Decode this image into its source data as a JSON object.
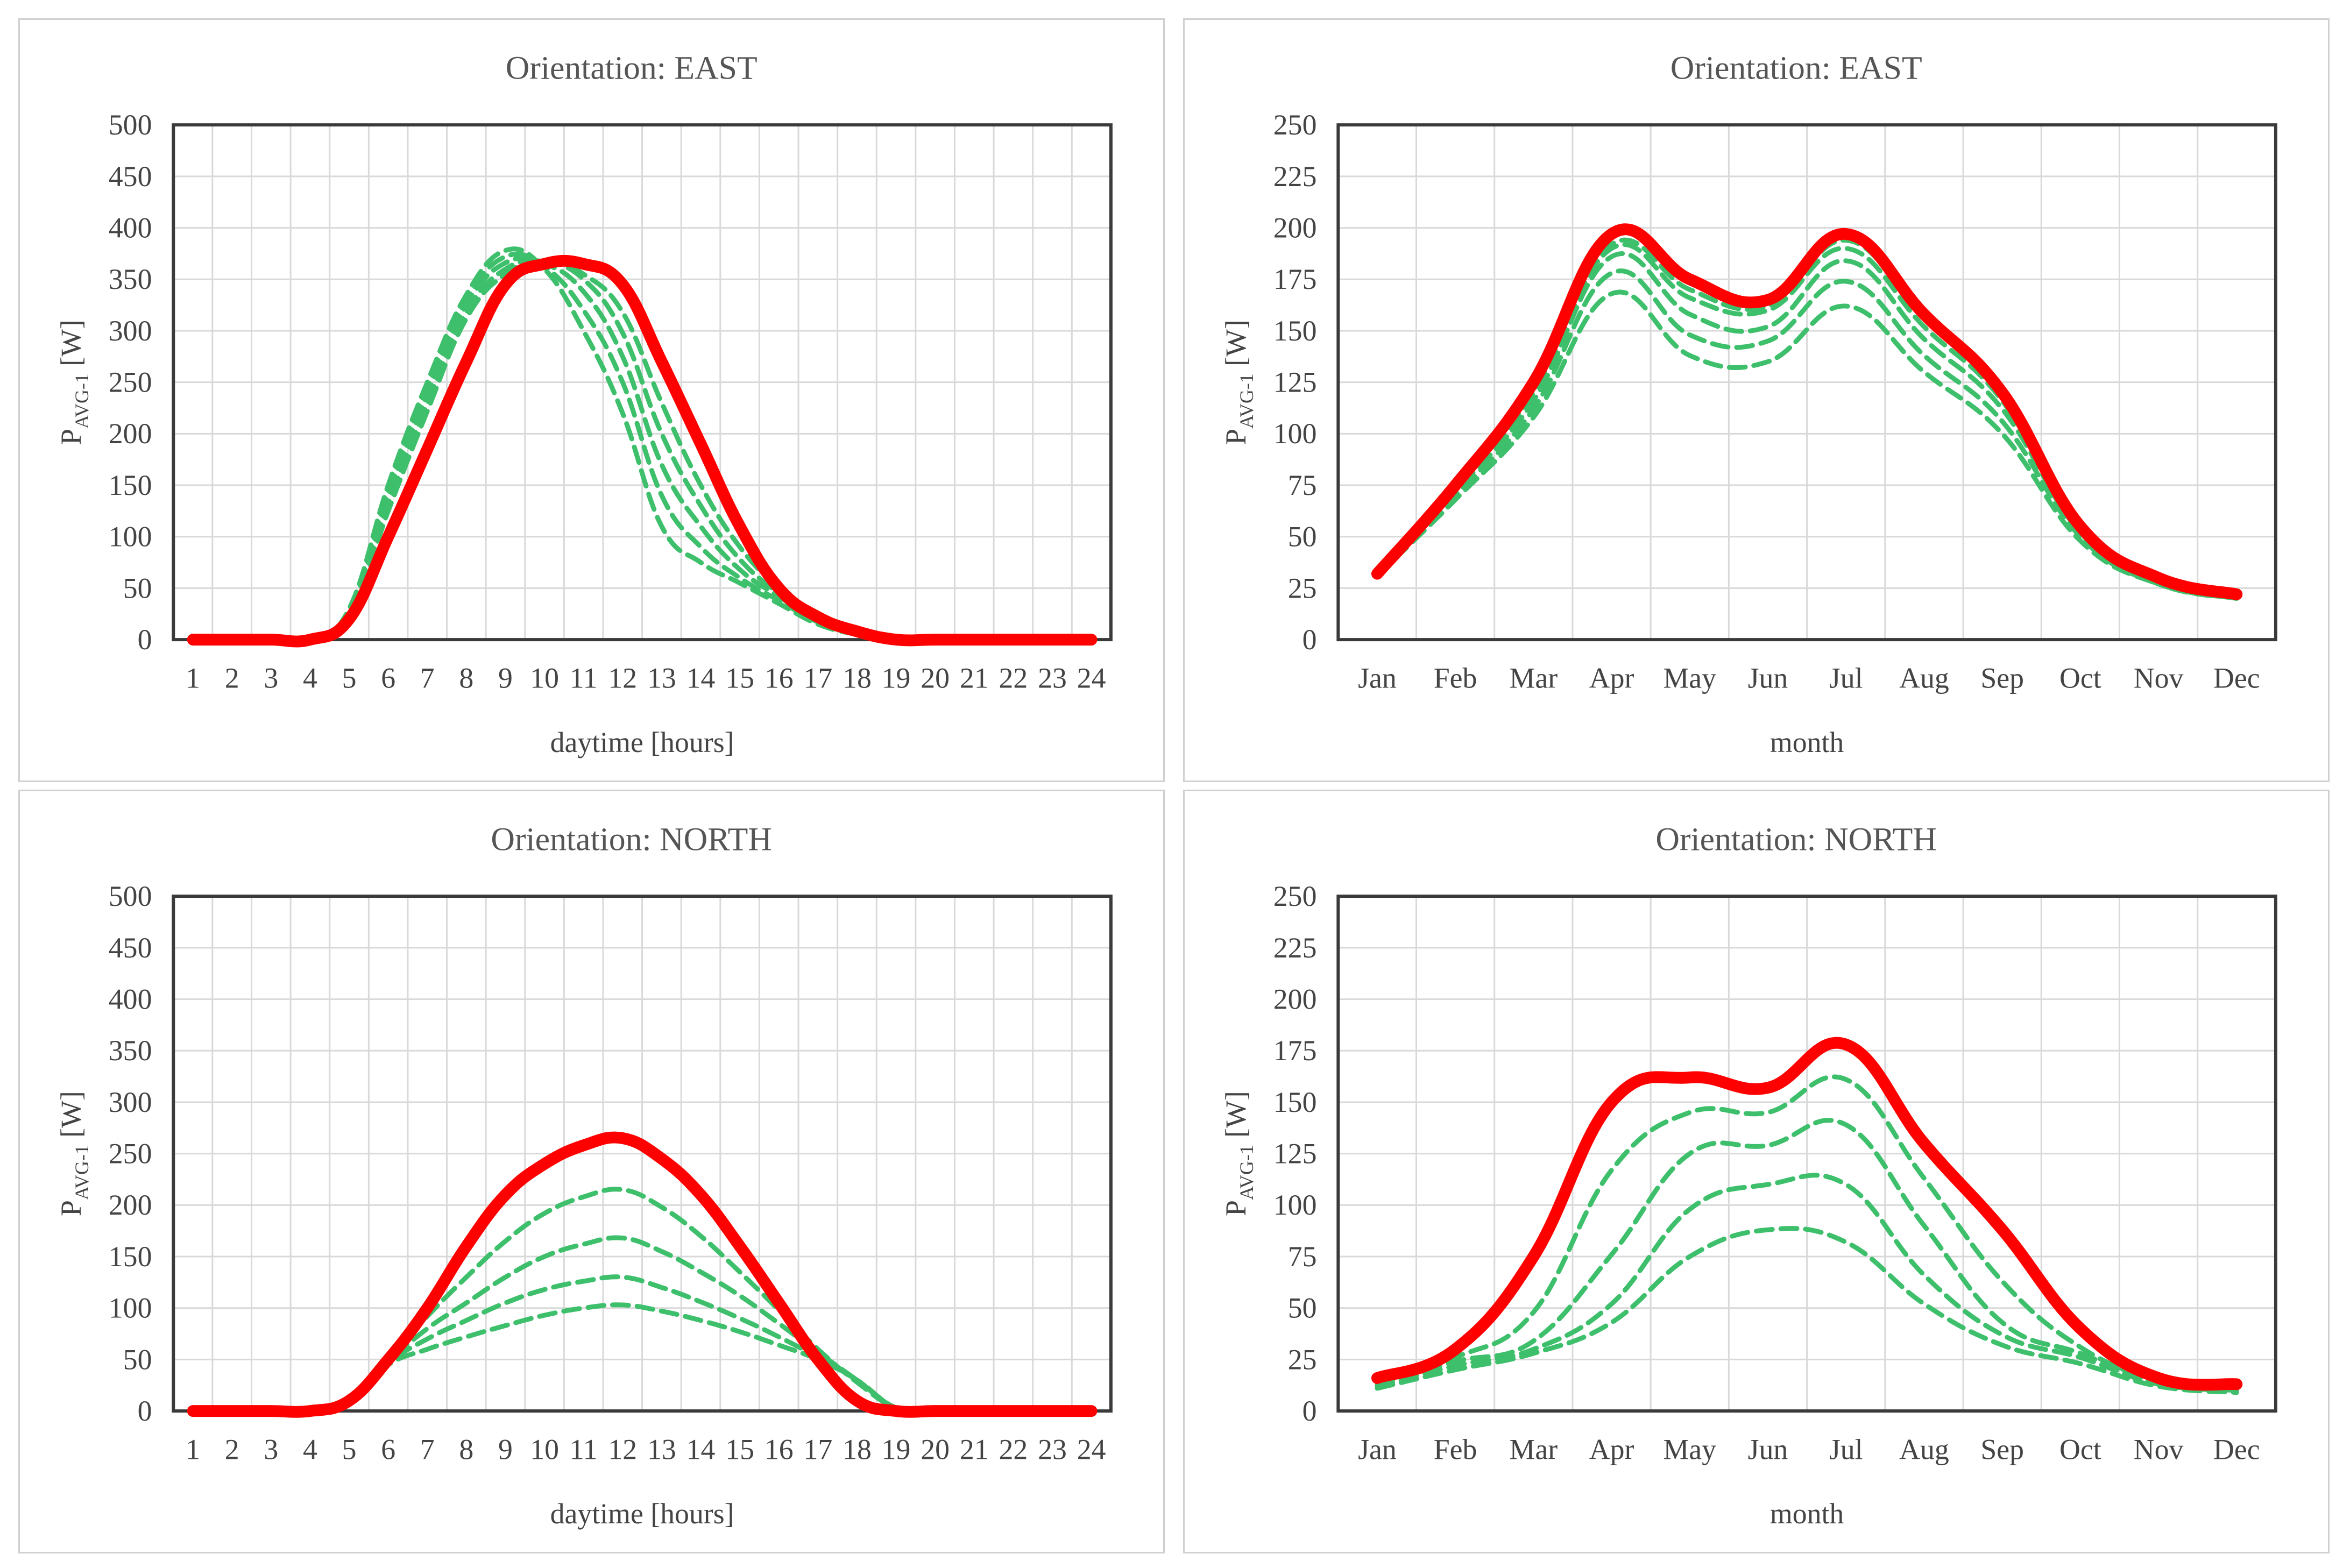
{
  "colors": {
    "red": "#ff0000",
    "green": "#3dbf6b",
    "grid": "#d9d9d9",
    "frame": "#3a3a3a"
  },
  "chart_data": [
    {
      "type": "line",
      "title": "Orientation: EAST",
      "xlabel": "daytime [hours]",
      "ylabel_main": "P",
      "ylabel_sub": "AVG-1",
      "ylabel_unit": " [W]",
      "categories": [
        "1",
        "2",
        "3",
        "4",
        "5",
        "6",
        "7",
        "8",
        "9",
        "10",
        "11",
        "12",
        "13",
        "14",
        "15",
        "16",
        "17",
        "18",
        "19",
        "20",
        "21",
        "22",
        "23",
        "24"
      ],
      "ylim": [
        0,
        500
      ],
      "yticks": [
        "0",
        "50",
        "100",
        "150",
        "200",
        "250",
        "300",
        "350",
        "400",
        "450",
        "500"
      ],
      "series": [
        {
          "name": "red",
          "style": "solid",
          "values": [
            0,
            0,
            0,
            0,
            20,
            100,
            185,
            270,
            345,
            365,
            365,
            345,
            270,
            190,
            110,
            50,
            22,
            8,
            0,
            0,
            0,
            0,
            0,
            0
          ]
        },
        {
          "name": "green-1",
          "style": "dashed",
          "values": [
            0,
            0,
            0,
            0,
            30,
            150,
            250,
            335,
            378,
            360,
            300,
            220,
            110,
            75,
            55,
            35,
            15,
            5,
            0,
            0,
            0,
            0,
            0,
            0
          ]
        },
        {
          "name": "green-2",
          "style": "dashed",
          "values": [
            0,
            0,
            0,
            0,
            28,
            145,
            245,
            330,
            372,
            362,
            320,
            250,
            140,
            90,
            60,
            38,
            17,
            5,
            0,
            0,
            0,
            0,
            0,
            0
          ]
        },
        {
          "name": "green-3",
          "style": "dashed",
          "values": [
            0,
            0,
            0,
            0,
            26,
            140,
            238,
            325,
            366,
            365,
            338,
            275,
            170,
            110,
            68,
            42,
            18,
            6,
            0,
            0,
            0,
            0,
            0,
            0
          ]
        },
        {
          "name": "green-4",
          "style": "dashed",
          "values": [
            0,
            0,
            0,
            0,
            24,
            132,
            230,
            318,
            360,
            367,
            350,
            298,
            200,
            130,
            78,
            45,
            19,
            6,
            0,
            0,
            0,
            0,
            0,
            0
          ]
        },
        {
          "name": "green-5",
          "style": "dashed",
          "values": [
            0,
            0,
            0,
            0,
            22,
            125,
            222,
            312,
            355,
            368,
            355,
            318,
            230,
            150,
            90,
            50,
            21,
            7,
            0,
            0,
            0,
            0,
            0,
            0
          ]
        }
      ]
    },
    {
      "type": "line",
      "title": "Orientation: EAST",
      "xlabel": "month",
      "ylabel_main": "P",
      "ylabel_sub": "AVG-1",
      "ylabel_unit": " [W]",
      "categories": [
        "Jan",
        "Feb",
        "Mar",
        "Apr",
        "May",
        "Jun",
        "Jul",
        "Aug",
        "Sep",
        "Oct",
        "Nov",
        "Dec"
      ],
      "ylim": [
        0,
        250
      ],
      "yticks": [
        "0",
        "25",
        "50",
        "75",
        "100",
        "125",
        "150",
        "175",
        "200",
        "225",
        "250"
      ],
      "series": [
        {
          "name": "red",
          "style": "solid",
          "values": [
            32,
            75,
            125,
            197,
            175,
            165,
            197,
            158,
            120,
            55,
            30,
            22
          ]
        },
        {
          "name": "green-1",
          "style": "dashed",
          "values": [
            31,
            68,
            108,
            168,
            138,
            135,
            162,
            130,
            100,
            48,
            27,
            20
          ]
        },
        {
          "name": "green-2",
          "style": "dashed",
          "values": [
            31,
            70,
            112,
            178,
            148,
            145,
            174,
            138,
            106,
            50,
            27,
            20
          ]
        },
        {
          "name": "green-3",
          "style": "dashed",
          "values": [
            32,
            72,
            116,
            186,
            158,
            152,
            184,
            146,
            112,
            52,
            28,
            21
          ]
        },
        {
          "name": "green-4",
          "style": "dashed",
          "values": [
            32,
            73,
            120,
            190,
            166,
            160,
            190,
            152,
            116,
            53,
            29,
            21
          ]
        },
        {
          "name": "green-5",
          "style": "dashed",
          "values": [
            32,
            74,
            122,
            192,
            170,
            162,
            194,
            156,
            119,
            54,
            29,
            21
          ]
        }
      ]
    },
    {
      "type": "line",
      "title": "Orientation: NORTH",
      "xlabel": "daytime [hours]",
      "ylabel_main": "P",
      "ylabel_sub": "AVG-1",
      "ylabel_unit": " [W]",
      "categories": [
        "1",
        "2",
        "3",
        "4",
        "5",
        "6",
        "7",
        "8",
        "9",
        "10",
        "11",
        "12",
        "13",
        "14",
        "15",
        "16",
        "17",
        "18",
        "19",
        "20",
        "21",
        "22",
        "23",
        "24"
      ],
      "ylim": [
        0,
        500
      ],
      "yticks": [
        "0",
        "50",
        "100",
        "150",
        "200",
        "250",
        "300",
        "350",
        "400",
        "450",
        "500"
      ],
      "series": [
        {
          "name": "red",
          "style": "solid",
          "values": [
            0,
            0,
            0,
            0,
            10,
            50,
            100,
            160,
            210,
            240,
            258,
            265,
            245,
            210,
            160,
            105,
            50,
            10,
            0,
            0,
            0,
            0,
            0,
            0
          ]
        },
        {
          "name": "green-1",
          "style": "dashed",
          "values": [
            0,
            0,
            0,
            0,
            12,
            45,
            60,
            72,
            83,
            93,
            100,
            103,
            97,
            88,
            77,
            64,
            50,
            30,
            3,
            0,
            0,
            0,
            0,
            0
          ]
        },
        {
          "name": "green-2",
          "style": "dashed",
          "values": [
            0,
            0,
            0,
            0,
            12,
            47,
            70,
            88,
            105,
            118,
            126,
            130,
            120,
            106,
            90,
            72,
            52,
            30,
            3,
            0,
            0,
            0,
            0,
            0
          ]
        },
        {
          "name": "green-3",
          "style": "dashed",
          "values": [
            0,
            0,
            0,
            0,
            12,
            48,
            80,
            105,
            130,
            150,
            162,
            168,
            155,
            135,
            112,
            85,
            57,
            30,
            3,
            0,
            0,
            0,
            0,
            0
          ]
        },
        {
          "name": "green-4",
          "style": "dashed",
          "values": [
            0,
            0,
            0,
            0,
            12,
            50,
            92,
            130,
            165,
            192,
            208,
            215,
            198,
            170,
            135,
            98,
            60,
            28,
            3,
            0,
            0,
            0,
            0,
            0
          ]
        }
      ]
    },
    {
      "type": "line",
      "title": "Orientation: NORTH",
      "xlabel": "month",
      "ylabel_main": "P",
      "ylabel_sub": "AVG-1",
      "ylabel_unit": " [W]",
      "categories": [
        "Jan",
        "Feb",
        "Mar",
        "Apr",
        "May",
        "Jun",
        "Jul",
        "Aug",
        "Sep",
        "Oct",
        "Nov",
        "Dec"
      ],
      "ylim": [
        0,
        250
      ],
      "yticks": [
        "0",
        "25",
        "50",
        "75",
        "100",
        "125",
        "150",
        "175",
        "200",
        "225",
        "250"
      ],
      "series": [
        {
          "name": "red",
          "style": "solid",
          "values": [
            16,
            30,
            75,
            150,
            162,
            157,
            178,
            130,
            88,
            40,
            16,
            13
          ]
        },
        {
          "name": "green-1",
          "style": "dashed",
          "values": [
            11,
            20,
            28,
            43,
            75,
            88,
            82,
            52,
            32,
            23,
            12,
            9
          ]
        },
        {
          "name": "green-2",
          "style": "dashed",
          "values": [
            12,
            22,
            30,
            52,
            98,
            110,
            110,
            66,
            37,
            26,
            13,
            10
          ]
        },
        {
          "name": "green-3",
          "style": "dashed",
          "values": [
            13,
            24,
            34,
            76,
            125,
            129,
            139,
            90,
            43,
            28,
            14,
            11
          ]
        },
        {
          "name": "green-4",
          "style": "dashed",
          "values": [
            14,
            26,
            48,
            117,
            145,
            145,
            161,
            113,
            63,
            31,
            15,
            11
          ]
        }
      ]
    }
  ]
}
